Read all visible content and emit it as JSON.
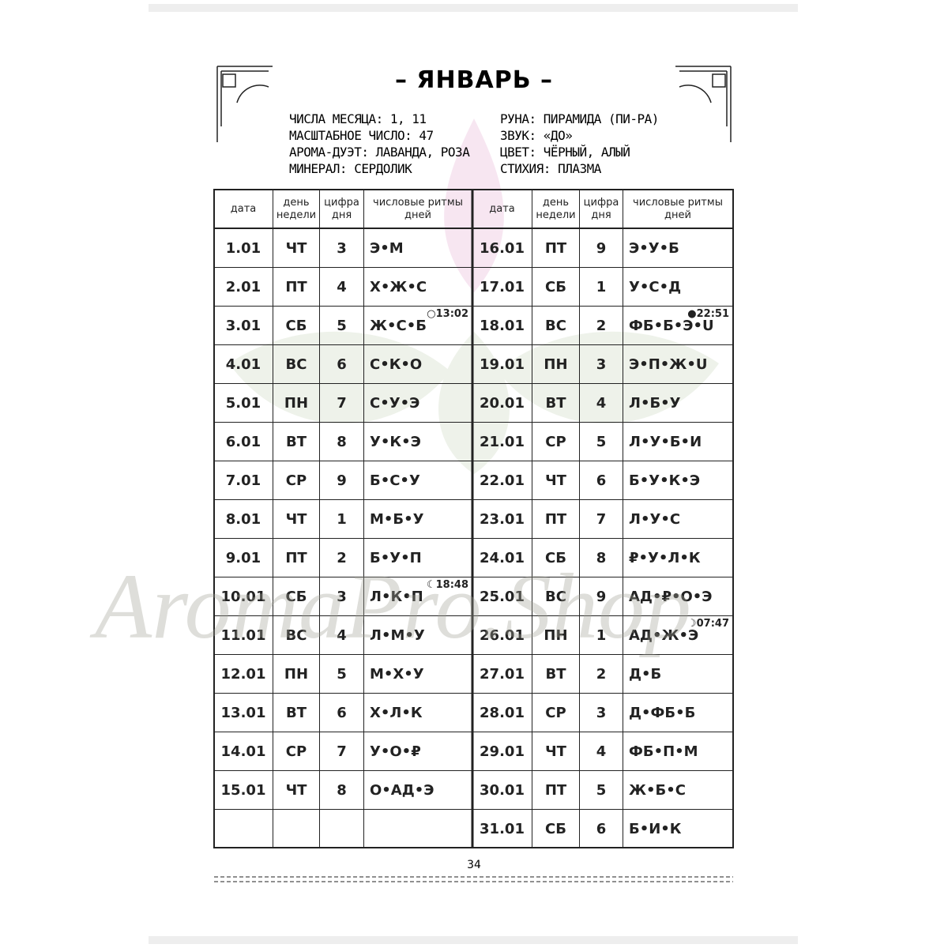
{
  "header": {
    "title": "– ЯНВАРЬ –"
  },
  "info": {
    "left": [
      "ЧИСЛА МЕСЯЦА: 1, 11",
      "МАСШТАБНОЕ ЧИСЛО: 47",
      "АРОМА-ДУЭТ: ЛАВАНДА, РОЗА",
      "МИНЕРАЛ: СЕРДОЛИК"
    ],
    "right": [
      "РУНА: ПИРАМИДА (ПИ-РА)",
      "ЗВУК: «ДО»",
      "ЦВЕТ: ЧЁРНЫЙ, АЛЫЙ",
      "СТИХИЯ: ПЛАЗМА"
    ]
  },
  "table": {
    "headers": [
      "дата",
      "день недели",
      "цифра дня",
      "числовые ритмы дней"
    ],
    "left": [
      [
        "1.01",
        "ЧТ",
        "3",
        "Э•М"
      ],
      [
        "2.01",
        "ПТ",
        "4",
        "Х•Ж•С"
      ],
      [
        "3.01",
        "СБ",
        "5",
        "Ж•С•Б"
      ],
      [
        "4.01",
        "ВС",
        "6",
        "С•К•О"
      ],
      [
        "5.01",
        "ПН",
        "7",
        "С•У•Э"
      ],
      [
        "6.01",
        "ВТ",
        "8",
        "У•К•Э"
      ],
      [
        "7.01",
        "СР",
        "9",
        "Б•С•У"
      ],
      [
        "8.01",
        "ЧТ",
        "1",
        "М•Б•У"
      ],
      [
        "9.01",
        "ПТ",
        "2",
        "Б•У•П"
      ],
      [
        "10.01",
        "СБ",
        "3",
        "Л•К•П"
      ],
      [
        "11.01",
        "ВС",
        "4",
        "Л•М•У"
      ],
      [
        "12.01",
        "ПН",
        "5",
        "М•Х•У"
      ],
      [
        "13.01",
        "ВТ",
        "6",
        "Х•Л•К"
      ],
      [
        "14.01",
        "СР",
        "7",
        "У•О•₽"
      ],
      [
        "15.01",
        "ЧТ",
        "8",
        "О•АД•Э"
      ]
    ],
    "right": [
      [
        "16.01",
        "ПТ",
        "9",
        "Э•У•Б"
      ],
      [
        "17.01",
        "СБ",
        "1",
        "У•С•Д"
      ],
      [
        "18.01",
        "ВС",
        "2",
        "ФБ•Б•Э•U"
      ],
      [
        "19.01",
        "ПН",
        "3",
        "Э•П•Ж•U"
      ],
      [
        "20.01",
        "ВТ",
        "4",
        "Л•Б•У"
      ],
      [
        "21.01",
        "СР",
        "5",
        "Л•У•Б•И"
      ],
      [
        "22.01",
        "ЧТ",
        "6",
        "Б•У•К•Э"
      ],
      [
        "23.01",
        "ПТ",
        "7",
        "Л•У•С"
      ],
      [
        "24.01",
        "СБ",
        "8",
        "₽•У•Л•К"
      ],
      [
        "25.01",
        "ВС",
        "9",
        "АД•₽•О•Э"
      ],
      [
        "26.01",
        "ПН",
        "1",
        "АД•Ж•Э"
      ],
      [
        "27.01",
        "ВТ",
        "2",
        "Д•Б"
      ],
      [
        "28.01",
        "СР",
        "3",
        "Д•ФБ•Б"
      ],
      [
        "29.01",
        "ЧТ",
        "4",
        "ФБ•П•М"
      ],
      [
        "30.01",
        "ПТ",
        "5",
        "Ж•Б•С"
      ],
      [
        "31.01",
        "СБ",
        "6",
        "Б•И•К"
      ]
    ],
    "left_moon": {
      "2": "○13:02",
      "9": "☾18:48"
    },
    "right_moon": {
      "2": "●22:51",
      "10": "☽07:47"
    }
  },
  "footer": {
    "page": "34"
  },
  "watermark": "AromaPro.Shop"
}
